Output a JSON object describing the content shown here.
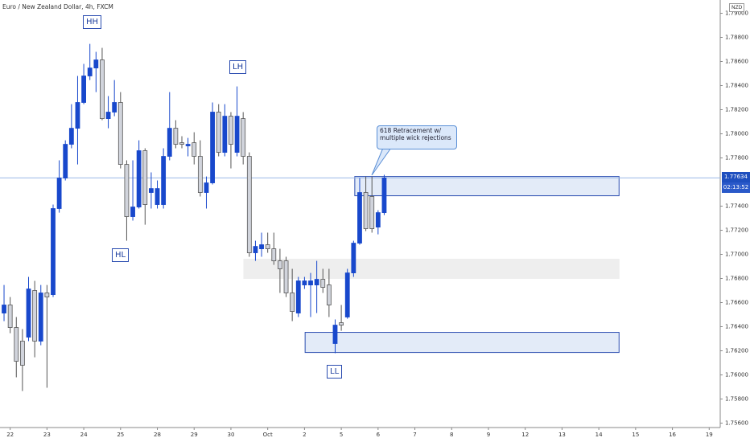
{
  "chart_data": {
    "type": "candlestick",
    "title": "Euro / New Zealand Dollar, 4h, FXCM",
    "currency": "NZD",
    "countdown": "02:13:52",
    "last_price": {
      "value": 1.77634,
      "label": "1.77634"
    },
    "up_color": "#1848cc",
    "down_color": "#d1d4dc",
    "annotations": [
      "HH",
      "HL",
      "LH",
      "LL"
    ],
    "callout": [
      "618 Retracement w/",
      "multiple wick rejections"
    ],
    "xlim": [
      -0.66,
      116.8
    ],
    "ylim": [
      1.7551,
      1.7911
    ],
    "xticks": [
      {
        "value": 1,
        "label": "22"
      },
      {
        "value": 7,
        "label": "23"
      },
      {
        "value": 13,
        "label": "24"
      },
      {
        "value": 19,
        "label": "25"
      },
      {
        "value": 25,
        "label": "28"
      },
      {
        "value": 31,
        "label": "29"
      },
      {
        "value": 37,
        "label": "30"
      },
      {
        "value": 43,
        "label": "Oct"
      },
      {
        "value": 49,
        "label": "2"
      },
      {
        "value": 55,
        "label": "5"
      },
      {
        "value": 61,
        "label": "6"
      },
      {
        "value": 67,
        "label": "7"
      },
      {
        "value": 73,
        "label": "8"
      },
      {
        "value": 79,
        "label": "9"
      },
      {
        "value": 85,
        "label": "12"
      },
      {
        "value": 91,
        "label": "13"
      },
      {
        "value": 97,
        "label": "14"
      },
      {
        "value": 103,
        "label": "15"
      },
      {
        "value": 109,
        "label": "16"
      },
      {
        "value": 115,
        "label": "19"
      }
    ],
    "yticks": [
      {
        "value": 1.756,
        "label": "1.75600"
      },
      {
        "value": 1.758,
        "label": "1.75800"
      },
      {
        "value": 1.76,
        "label": "1.76000"
      },
      {
        "value": 1.762,
        "label": "1.76200"
      },
      {
        "value": 1.764,
        "label": "1.76400"
      },
      {
        "value": 1.766,
        "label": "1.76600"
      },
      {
        "value": 1.768,
        "label": "1.76800"
      },
      {
        "value": 1.77,
        "label": "1.77000"
      },
      {
        "value": 1.772,
        "label": "1.77200"
      },
      {
        "value": 1.774,
        "label": "1.77400"
      },
      {
        "value": 1.778,
        "label": "1.77800"
      },
      {
        "value": 1.78,
        "label": "1.78000"
      },
      {
        "value": 1.782,
        "label": "1.78200"
      },
      {
        "value": 1.784,
        "label": "1.78400"
      },
      {
        "value": 1.786,
        "label": "1.78600"
      },
      {
        "value": 1.788,
        "label": "1.78800"
      },
      {
        "value": 1.79,
        "label": "1.79000"
      }
    ],
    "zones": [
      {
        "from": 57.2,
        "to": 100.3,
        "high": 1.77646,
        "low": 1.77486,
        "color": "#e3ebf8",
        "border": "#2a4cb0"
      },
      {
        "from": 39.1,
        "to": 100.3,
        "high": 1.7696,
        "low": 1.768,
        "color": "#eeeeee",
        "border": "#eeeeee"
      },
      {
        "from": 49.1,
        "to": 100.3,
        "high": 1.76353,
        "low": 1.76186,
        "color": "#e3ebf8",
        "border": "#2a4cb0"
      }
    ],
    "open": [
      1.76513,
      1.7658,
      1.76393,
      1.7628,
      1.76313,
      1.767,
      1.7628,
      1.7668,
      1.76666,
      1.7738,
      1.77633,
      1.77913,
      1.78046,
      1.7826,
      1.7848,
      1.78546,
      1.78613,
      1.78126,
      1.7818,
      1.7826,
      1.77746,
      1.77313,
      1.77393,
      1.7786,
      1.77513,
      1.77413,
      1.77413,
      1.77813,
      1.78046,
      1.77926,
      1.779,
      1.77926,
      1.77813,
      1.77513,
      1.77593,
      1.7818,
      1.77846,
      1.78146,
      1.77846,
      1.78126,
      1.77813,
      1.77013,
      1.77046,
      1.7708,
      1.77046,
      1.76946,
      1.76946,
      1.7668,
      1.76513,
      1.76746,
      1.76746,
      1.76746,
      1.76793,
      1.76746,
      1.7626,
      1.76433,
      1.7648,
      1.76846,
      1.77093,
      1.77513,
      1.7748,
      1.77226,
      1.77346
    ],
    "high": [
      1.76746,
      1.76646,
      1.7648,
      1.7638,
      1.76813,
      1.7678,
      1.76746,
      1.76746,
      1.77413,
      1.7778,
      1.77946,
      1.78246,
      1.7848,
      1.7858,
      1.78746,
      1.7868,
      1.78713,
      1.78313,
      1.78446,
      1.78346,
      1.7778,
      1.7778,
      1.77946,
      1.7788,
      1.7768,
      1.77613,
      1.7788,
      1.78346,
      1.78113,
      1.7798,
      1.77966,
      1.78013,
      1.77946,
      1.77646,
      1.7826,
      1.78246,
      1.78246,
      1.7818,
      1.78393,
      1.7818,
      1.77846,
      1.77113,
      1.7718,
      1.7718,
      1.7718,
      1.77046,
      1.7698,
      1.7688,
      1.76813,
      1.76813,
      1.76846,
      1.76946,
      1.7688,
      1.7688,
      1.7646,
      1.7658,
      1.7688,
      1.77113,
      1.77633,
      1.77646,
      1.77646,
      1.77366,
      1.7766
    ],
    "low": [
      1.76446,
      1.76346,
      1.7598,
      1.75866,
      1.7628,
      1.76146,
      1.76246,
      1.75893,
      1.76646,
      1.77346,
      1.77613,
      1.7788,
      1.77746,
      1.78246,
      1.78446,
      1.78346,
      1.78113,
      1.78046,
      1.78146,
      1.77713,
      1.77113,
      1.7728,
      1.7738,
      1.77246,
      1.7738,
      1.7738,
      1.7738,
      1.7778,
      1.7788,
      1.7788,
      1.77813,
      1.77746,
      1.7748,
      1.7738,
      1.7758,
      1.77813,
      1.77813,
      1.77713,
      1.77813,
      1.77746,
      1.7698,
      1.76946,
      1.7698,
      1.77013,
      1.76913,
      1.7668,
      1.76646,
      1.76446,
      1.7648,
      1.76713,
      1.7648,
      1.76513,
      1.7668,
      1.7648,
      1.7618,
      1.76366,
      1.76466,
      1.76813,
      1.7708,
      1.77193,
      1.7718,
      1.77166,
      1.77326
    ],
    "close": [
      1.7658,
      1.76393,
      1.76113,
      1.7608,
      1.76713,
      1.7628,
      1.7668,
      1.76646,
      1.7738,
      1.77633,
      1.77913,
      1.78046,
      1.7826,
      1.7848,
      1.78546,
      1.78613,
      1.78126,
      1.7818,
      1.7826,
      1.77746,
      1.77313,
      1.77393,
      1.7786,
      1.77413,
      1.77546,
      1.77546,
      1.77813,
      1.78046,
      1.77913,
      1.77913,
      1.77913,
      1.77813,
      1.77513,
      1.77593,
      1.7818,
      1.77846,
      1.78146,
      1.77913,
      1.78146,
      1.77813,
      1.77013,
      1.77066,
      1.7708,
      1.77046,
      1.76946,
      1.7688,
      1.7668,
      1.76526,
      1.7678,
      1.7678,
      1.7678,
      1.76793,
      1.76726,
      1.7658,
      1.76413,
      1.76413,
      1.76846,
      1.77093,
      1.77513,
      1.77213,
      1.77213,
      1.77346,
      1.77634
    ]
  }
}
